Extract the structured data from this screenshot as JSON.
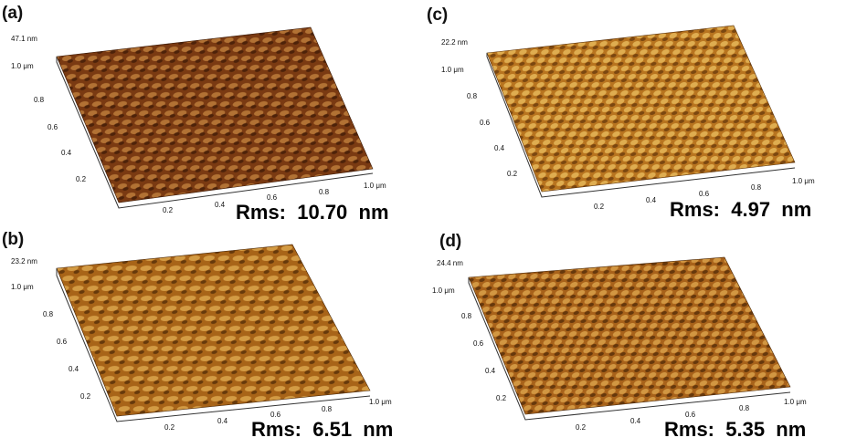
{
  "panels": [
    {
      "id": "a",
      "label": "(a)",
      "z_max": "47.1  nm",
      "y_top": "1.0 μm",
      "y_ticks": [
        "0.8",
        "0.6",
        "0.4",
        "0.2"
      ],
      "x_ticks": [
        "0.2",
        "0.4",
        "0.6",
        "0.8"
      ],
      "x_end": "1.0 μm",
      "rms": "Rms:  10.70  nm",
      "colors": {
        "base": "#7a3a12",
        "light": "#e0a050",
        "dark": "#3a1805"
      }
    },
    {
      "id": "c",
      "label": "(c)",
      "z_max": "22.2  nm",
      "y_top": "1.0 μm",
      "y_ticks": [
        "0.8",
        "0.6",
        "0.4",
        "0.2"
      ],
      "x_ticks": [
        "0.2",
        "0.4",
        "0.6",
        "0.8"
      ],
      "x_end": "1.0 μm",
      "rms": "Rms:  4.97  nm",
      "colors": {
        "base": "#b8741f",
        "light": "#f4cc6a",
        "dark": "#5a3008"
      }
    },
    {
      "id": "b",
      "label": "(b)",
      "z_max": "23.2  nm",
      "y_top": "1.0 μm",
      "y_ticks": [
        "0.8",
        "0.6",
        "0.4",
        "0.2"
      ],
      "x_ticks": [
        "0.2",
        "0.4",
        "0.6",
        "0.8"
      ],
      "x_end": "1.0 μm",
      "rms": "Rms:  6.51  nm",
      "colors": {
        "base": "#a86418",
        "light": "#f0c060",
        "dark": "#4a2605"
      }
    },
    {
      "id": "d",
      "label": "(d)",
      "z_max": "24.4  nm",
      "y_top": "1.0 μm",
      "y_ticks": [
        "0.8",
        "0.6",
        "0.4",
        "0.2"
      ],
      "x_ticks": [
        "0.2",
        "0.4",
        "0.6",
        "0.8"
      ],
      "x_end": "1.0 μm",
      "rms": "Rms:  5.35  nm",
      "colors": {
        "base": "#a8621a",
        "light": "#eebb5e",
        "dark": "#4a2606"
      }
    }
  ]
}
